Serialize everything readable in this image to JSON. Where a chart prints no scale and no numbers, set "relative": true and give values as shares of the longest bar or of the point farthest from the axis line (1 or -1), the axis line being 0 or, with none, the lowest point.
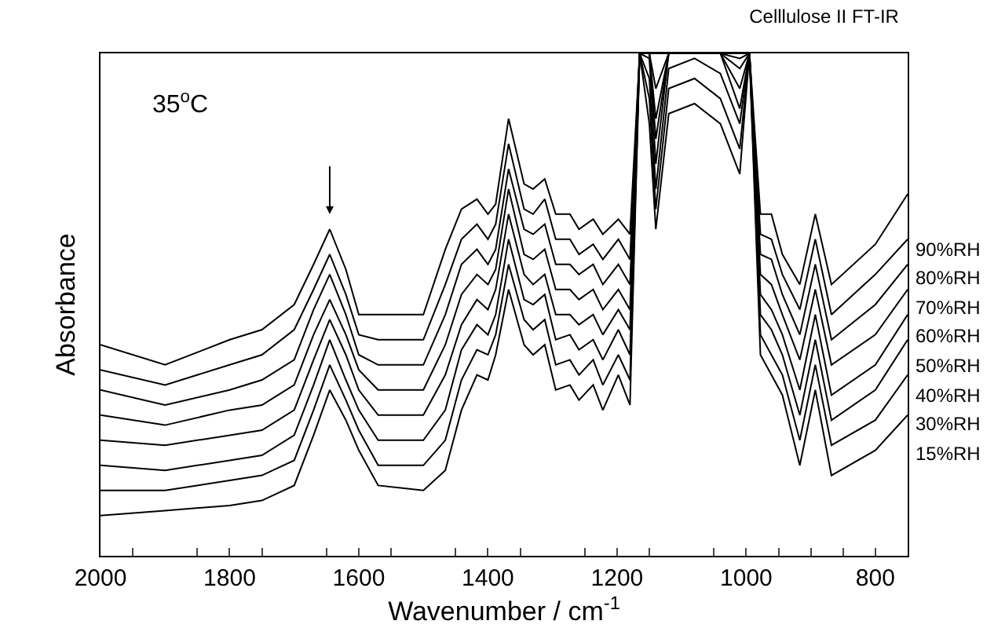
{
  "chart_data": {
    "type": "line",
    "title": "Celllulose II FT-IR",
    "xlabel": "Wavenumber / cm$^{-1}$",
    "ylabel": "Absorbance",
    "relative": true,
    "annotations": [
      "35$^{o}$C"
    ],
    "xlim": [
      2000,
      750
    ],
    "xticks": [
      2000,
      {
        "value": 1950,
        "label": null
      },
      1800,
      {
        "value": 1850,
        "label": null
      },
      {
        "value": 1750,
        "label": null
      },
      1600,
      {
        "value": 1650,
        "label": null
      },
      {
        "value": 1550,
        "label": null
      },
      1400,
      {
        "value": 1450,
        "label": null
      },
      {
        "value": 1350,
        "label": null
      },
      1200,
      {
        "value": 1250,
        "label": null
      },
      {
        "value": 1150,
        "label": null
      },
      1000,
      {
        "value": 1050,
        "label": null
      },
      {
        "value": 950,
        "label": null
      },
      800,
      {
        "value": 900,
        "label": null
      },
      {
        "value": 850,
        "label": null
      }
    ],
    "x": [
      2000,
      1900,
      1800,
      1750,
      1700,
      1670,
      1645,
      1620,
      1600,
      1570,
      1500,
      1466,
      1441,
      1417,
      1400,
      1388,
      1368,
      1344,
      1330,
      1312,
      1295,
      1273,
      1259,
      1237,
      1222,
      1198,
      1180,
      1165,
      1150,
      1140,
      1120,
      1080,
      1040,
      1010,
      995,
      978,
      961,
      944,
      917,
      893,
      868,
      800,
      750
    ],
    "series": [
      {
        "name": "90%RH",
        "color": "#000000",
        "values": [
          0.42,
          0.38,
          0.43,
          0.45,
          0.5,
          0.58,
          0.65,
          0.57,
          0.48,
          0.48,
          0.48,
          0.61,
          0.69,
          0.71,
          0.68,
          0.7,
          0.87,
          0.74,
          0.73,
          0.75,
          0.68,
          0.68,
          0.65,
          0.67,
          0.64,
          0.67,
          0.64,
          1,
          1,
          1,
          1,
          1,
          1,
          1,
          1,
          0.68,
          0.68,
          0.6,
          0.54,
          0.68,
          0.54,
          0.62,
          0.72
        ]
      },
      {
        "name": "80%RH",
        "color": "#000000",
        "values": [
          0.37,
          0.34,
          0.38,
          0.4,
          0.45,
          0.53,
          0.6,
          0.52,
          0.44,
          0.43,
          0.43,
          0.54,
          0.63,
          0.66,
          0.63,
          0.66,
          0.82,
          0.69,
          0.68,
          0.71,
          0.63,
          0.63,
          0.6,
          0.62,
          0.59,
          0.63,
          0.59,
          1,
          1,
          0.93,
          1,
          1,
          1,
          0.99,
          1,
          0.64,
          0.63,
          0.56,
          0.49,
          0.63,
          0.48,
          0.56,
          0.63
        ]
      },
      {
        "name": "70%RH",
        "color": "#000000",
        "values": [
          0.33,
          0.3,
          0.33,
          0.35,
          0.39,
          0.49,
          0.56,
          0.48,
          0.4,
          0.38,
          0.38,
          0.48,
          0.58,
          0.61,
          0.58,
          0.61,
          0.77,
          0.65,
          0.64,
          0.66,
          0.58,
          0.58,
          0.56,
          0.58,
          0.54,
          0.58,
          0.54,
          1,
          1,
          0.87,
          1,
          1,
          1,
          0.97,
          1,
          0.6,
          0.59,
          0.52,
          0.44,
          0.58,
          0.43,
          0.5,
          0.58
        ]
      },
      {
        "name": "60%RH",
        "color": "#000000",
        "values": [
          0.28,
          0.26,
          0.29,
          0.3,
          0.34,
          0.44,
          0.51,
          0.44,
          0.37,
          0.33,
          0.33,
          0.42,
          0.52,
          0.56,
          0.54,
          0.57,
          0.73,
          0.6,
          0.59,
          0.61,
          0.53,
          0.53,
          0.51,
          0.53,
          0.49,
          0.53,
          0.49,
          1,
          1,
          0.83,
          1,
          1,
          1,
          0.93,
          1,
          0.56,
          0.54,
          0.48,
          0.39,
          0.53,
          0.38,
          0.44,
          0.53
        ]
      },
      {
        "name": "50%RH",
        "color": "#000000",
        "values": [
          0.23,
          0.22,
          0.24,
          0.25,
          0.29,
          0.39,
          0.47,
          0.4,
          0.33,
          0.28,
          0.28,
          0.36,
          0.46,
          0.51,
          0.49,
          0.53,
          0.68,
          0.56,
          0.54,
          0.56,
          0.48,
          0.48,
          0.46,
          0.48,
          0.44,
          0.49,
          0.45,
          1,
          0.99,
          0.78,
          1,
          1,
          1,
          0.89,
          1,
          0.52,
          0.49,
          0.44,
          0.33,
          0.48,
          0.32,
          0.38,
          0.48
        ]
      },
      {
        "name": "40%RH",
        "color": "#000000",
        "values": [
          0.18,
          0.17,
          0.19,
          0.2,
          0.24,
          0.34,
          0.43,
          0.35,
          0.29,
          0.23,
          0.23,
          0.29,
          0.41,
          0.46,
          0.44,
          0.48,
          0.63,
          0.51,
          0.5,
          0.52,
          0.43,
          0.44,
          0.41,
          0.43,
          0.39,
          0.45,
          0.4,
          1,
          0.95,
          0.73,
          0.97,
          0.99,
          0.96,
          0.86,
          1,
          0.48,
          0.45,
          0.4,
          0.28,
          0.43,
          0.27,
          0.33,
          0.43
        ]
      },
      {
        "name": "30%RH",
        "color": "#000000",
        "values": [
          0.13,
          0.13,
          0.15,
          0.16,
          0.19,
          0.29,
          0.38,
          0.31,
          0.25,
          0.18,
          0.18,
          0.23,
          0.35,
          0.41,
          0.4,
          0.44,
          0.58,
          0.47,
          0.45,
          0.47,
          0.38,
          0.39,
          0.36,
          0.39,
          0.34,
          0.4,
          0.35,
          1,
          0.91,
          0.69,
          0.93,
          0.95,
          0.91,
          0.81,
          1,
          0.44,
          0.4,
          0.36,
          0.23,
          0.38,
          0.22,
          0.27,
          0.36
        ]
      },
      {
        "name": "15%RH",
        "color": "#000000",
        "values": [
          0.08,
          0.09,
          0.1,
          0.11,
          0.14,
          0.24,
          0.33,
          0.27,
          0.21,
          0.14,
          0.13,
          0.17,
          0.29,
          0.36,
          0.35,
          0.4,
          0.53,
          0.42,
          0.4,
          0.42,
          0.33,
          0.34,
          0.31,
          0.34,
          0.29,
          0.36,
          0.3,
          1,
          0.86,
          0.65,
          0.88,
          0.9,
          0.86,
          0.76,
          1,
          0.4,
          0.36,
          0.32,
          0.18,
          0.33,
          0.16,
          0.21,
          0.28
        ]
      }
    ]
  }
}
